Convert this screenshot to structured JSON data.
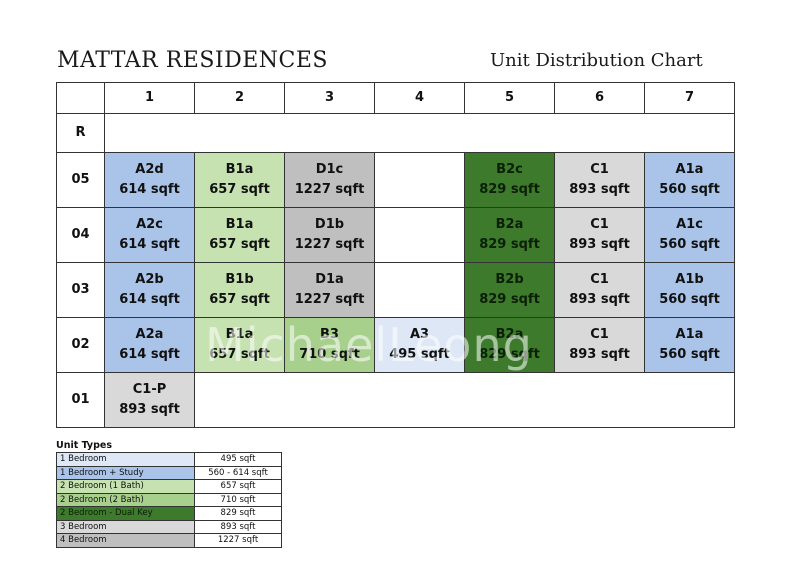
{
  "header": {
    "title": "MATTAR RESIDENCES",
    "subtitle": "Unit Distribution Chart"
  },
  "colors": {
    "blue": "#a9c4e8",
    "light_green": "#c6e2b0",
    "mid_green": "#a8d08d",
    "dark_green": "#3d7a2c",
    "light_blue": "#dde7f6",
    "light_grey": "#d9d9d9",
    "grey": "#bfbfbf"
  },
  "grid": {
    "columns": [
      "1",
      "2",
      "3",
      "4",
      "5",
      "6",
      "7"
    ],
    "rows": [
      {
        "label": "R",
        "cells": []
      },
      {
        "label": "05",
        "cells": [
          {
            "type": "A2d",
            "size": "614 sqft",
            "color": "#a9c4e8"
          },
          {
            "type": "B1a",
            "size": "657 sqft",
            "color": "#c6e2b0"
          },
          {
            "type": "D1c",
            "size": "1227 sqft",
            "color": "#bfbfbf"
          },
          {
            "type": "",
            "size": "",
            "color": "#ffffff"
          },
          {
            "type": "B2c",
            "size": "829 sqft",
            "color": "#3d7a2c"
          },
          {
            "type": "C1",
            "size": "893 sqft",
            "color": "#d9d9d9"
          },
          {
            "type": "A1a",
            "size": "560 sqft",
            "color": "#a9c4e8"
          }
        ]
      },
      {
        "label": "04",
        "cells": [
          {
            "type": "A2c",
            "size": "614 sqft",
            "color": "#a9c4e8"
          },
          {
            "type": "B1a",
            "size": "657 sqft",
            "color": "#c6e2b0"
          },
          {
            "type": "D1b",
            "size": "1227 sqft",
            "color": "#bfbfbf"
          },
          {
            "type": "",
            "size": "",
            "color": "#ffffff"
          },
          {
            "type": "B2a",
            "size": "829 sqft",
            "color": "#3d7a2c"
          },
          {
            "type": "C1",
            "size": "893 sqft",
            "color": "#d9d9d9"
          },
          {
            "type": "A1c",
            "size": "560 sqft",
            "color": "#a9c4e8"
          }
        ]
      },
      {
        "label": "03",
        "cells": [
          {
            "type": "A2b",
            "size": "614 sqft",
            "color": "#a9c4e8"
          },
          {
            "type": "B1b",
            "size": "657 sqft",
            "color": "#c6e2b0"
          },
          {
            "type": "D1a",
            "size": "1227 sqft",
            "color": "#bfbfbf"
          },
          {
            "type": "",
            "size": "",
            "color": "#ffffff"
          },
          {
            "type": "B2b",
            "size": "829 sqft",
            "color": "#3d7a2c"
          },
          {
            "type": "C1",
            "size": "893 sqft",
            "color": "#d9d9d9"
          },
          {
            "type": "A1b",
            "size": "560 sqft",
            "color": "#a9c4e8"
          }
        ]
      },
      {
        "label": "02",
        "cells": [
          {
            "type": "A2a",
            "size": "614 sqft",
            "color": "#a9c4e8"
          },
          {
            "type": "B1a",
            "size": "657 sqft",
            "color": "#c6e2b0"
          },
          {
            "type": "B3",
            "size": "710 sqft",
            "color": "#a8d08d"
          },
          {
            "type": "A3",
            "size": "495 sqft",
            "color": "#dde7f6"
          },
          {
            "type": "B2a",
            "size": "829 sqft",
            "color": "#3d7a2c"
          },
          {
            "type": "C1",
            "size": "893 sqft",
            "color": "#d9d9d9"
          },
          {
            "type": "A1a",
            "size": "560 sqft",
            "color": "#a9c4e8"
          }
        ]
      },
      {
        "label": "01",
        "cells": [
          {
            "type": "C1-P",
            "size": "893 sqft",
            "color": "#d9d9d9"
          }
        ]
      }
    ]
  },
  "legend": {
    "title": "Unit Types",
    "items": [
      {
        "name": "1 Bedroom",
        "value": "495 sqft",
        "color": "#dde7f6"
      },
      {
        "name": "1 Bedroom + Study",
        "value": "560 - 614 sqft",
        "color": "#a9c4e8"
      },
      {
        "name": "2 Bedroom (1 Bath)",
        "value": "657 sqft",
        "color": "#c6e2b0"
      },
      {
        "name": "2 Bedroom (2 Bath)",
        "value": "710 sqft",
        "color": "#a8d08d"
      },
      {
        "name": "2 Bedroom - Dual Key",
        "value": "829 sqft",
        "color": "#3d7a2c"
      },
      {
        "name": "3 Bedroom",
        "value": "893 sqft",
        "color": "#d9d9d9"
      },
      {
        "name": "4 Bedroom",
        "value": "1227 sqft",
        "color": "#bfbfbf"
      }
    ]
  },
  "watermark": "MichaelLeong"
}
